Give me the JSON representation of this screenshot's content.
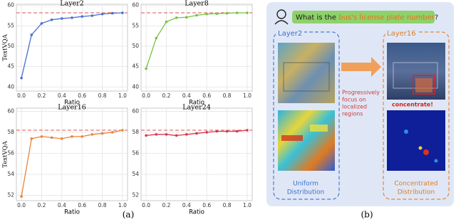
{
  "chart_data": [
    {
      "type": "line",
      "title": "Layer2",
      "xlabel": "Ratio",
      "ylabel": "TextVQA",
      "x": [
        0,
        0.1,
        0.2,
        0.3,
        0.4,
        0.5,
        0.6,
        0.7,
        0.8,
        0.9,
        1.0
      ],
      "series": [
        {
          "color": "#4a6fd1",
          "values": [
            42.2,
            52.8,
            55.6,
            56.5,
            56.8,
            57.0,
            57.3,
            57.5,
            57.9,
            58.1,
            58.2
          ]
        }
      ],
      "reference": {
        "value": 58.2,
        "color": "#d9534f"
      },
      "xlim": [
        -0.05,
        1.05
      ],
      "xticks": [
        {
          "value": 0,
          "label": "0.0"
        },
        0.2,
        0.4,
        0.6,
        0.8,
        {
          "value": 1,
          "label": "1.0"
        }
      ],
      "ylim": [
        39,
        60.3
      ],
      "yticks": [
        40,
        45,
        50,
        55,
        60
      ],
      "grid": true
    },
    {
      "type": "line",
      "title": "Layer8",
      "xlabel": "Ratio",
      "x": [
        0,
        0.1,
        0.2,
        0.3,
        0.4,
        0.5,
        0.6,
        0.7,
        0.8,
        0.9,
        1.0
      ],
      "series": [
        {
          "color": "#7ac143",
          "values": [
            44.5,
            52.0,
            56.0,
            57.0,
            57.1,
            57.6,
            57.9,
            58.0,
            58.1,
            58.2,
            58.2
          ]
        }
      ],
      "reference": {
        "value": 58.2,
        "color": "#d9534f"
      },
      "xlim": [
        -0.05,
        1.05
      ],
      "xticks": [
        {
          "value": 0,
          "label": "0.0"
        },
        0.2,
        0.4,
        0.6,
        0.8,
        {
          "value": 1,
          "label": "1.0"
        }
      ],
      "ylim": [
        39,
        60.3
      ],
      "yticks": [
        40,
        45,
        50,
        55,
        60
      ],
      "grid": true
    },
    {
      "type": "line",
      "title": "Layer16",
      "xlabel": "Ratio",
      "ylabel": "TextVQA",
      "x": [
        0,
        0.1,
        0.2,
        0.3,
        0.4,
        0.5,
        0.6,
        0.7,
        0.8,
        0.9,
        1.0
      ],
      "series": [
        {
          "color": "#e8843a",
          "values": [
            51.9,
            57.4,
            57.6,
            57.5,
            57.4,
            57.6,
            57.6,
            57.8,
            57.9,
            58.0,
            58.2
          ]
        }
      ],
      "reference": {
        "value": 58.2,
        "color": "#d9534f"
      },
      "xlim": [
        -0.05,
        1.05
      ],
      "xticks": [
        {
          "value": 0,
          "label": "0.0"
        },
        0.2,
        0.4,
        0.6,
        0.8,
        {
          "value": 1,
          "label": "1.0"
        }
      ],
      "ylim": [
        51.5,
        60.3
      ],
      "yticks": [
        52,
        54,
        56,
        58,
        60
      ],
      "grid": true
    },
    {
      "type": "line",
      "title": "Layer24",
      "xlabel": "Ratio",
      "x": [
        0,
        0.1,
        0.2,
        0.3,
        0.4,
        0.5,
        0.6,
        0.7,
        0.8,
        0.9,
        1.0
      ],
      "series": [
        {
          "color": "#d6354f",
          "values": [
            57.7,
            57.8,
            57.8,
            57.7,
            57.8,
            57.9,
            58.0,
            58.1,
            58.1,
            58.1,
            58.2
          ]
        }
      ],
      "reference": {
        "value": 58.2,
        "color": "#d9534f"
      },
      "xlim": [
        -0.05,
        1.05
      ],
      "xticks": [
        {
          "value": 0,
          "label": "0.0"
        },
        0.2,
        0.4,
        0.6,
        0.8,
        {
          "value": 1,
          "label": "1.0"
        }
      ],
      "ylim": [
        51.5,
        60.3
      ],
      "yticks": [
        52,
        54,
        56,
        58,
        60
      ],
      "grid": true
    }
  ],
  "captions": [
    "(a)",
    "(b)"
  ],
  "panel_b": {
    "question": {
      "prefix": "What is the ",
      "highlight": "bus's license plate number",
      "suffix": "?"
    },
    "left_layer": "Layer2",
    "right_layer": "Layer16",
    "arrow_text": [
      "Progressively",
      "focus on",
      "localized",
      "regions"
    ],
    "concentrate": "concentrate!",
    "left_caption": [
      "Uniform",
      "Distribution"
    ],
    "right_caption": [
      "Concentrated",
      "Distribution"
    ]
  }
}
